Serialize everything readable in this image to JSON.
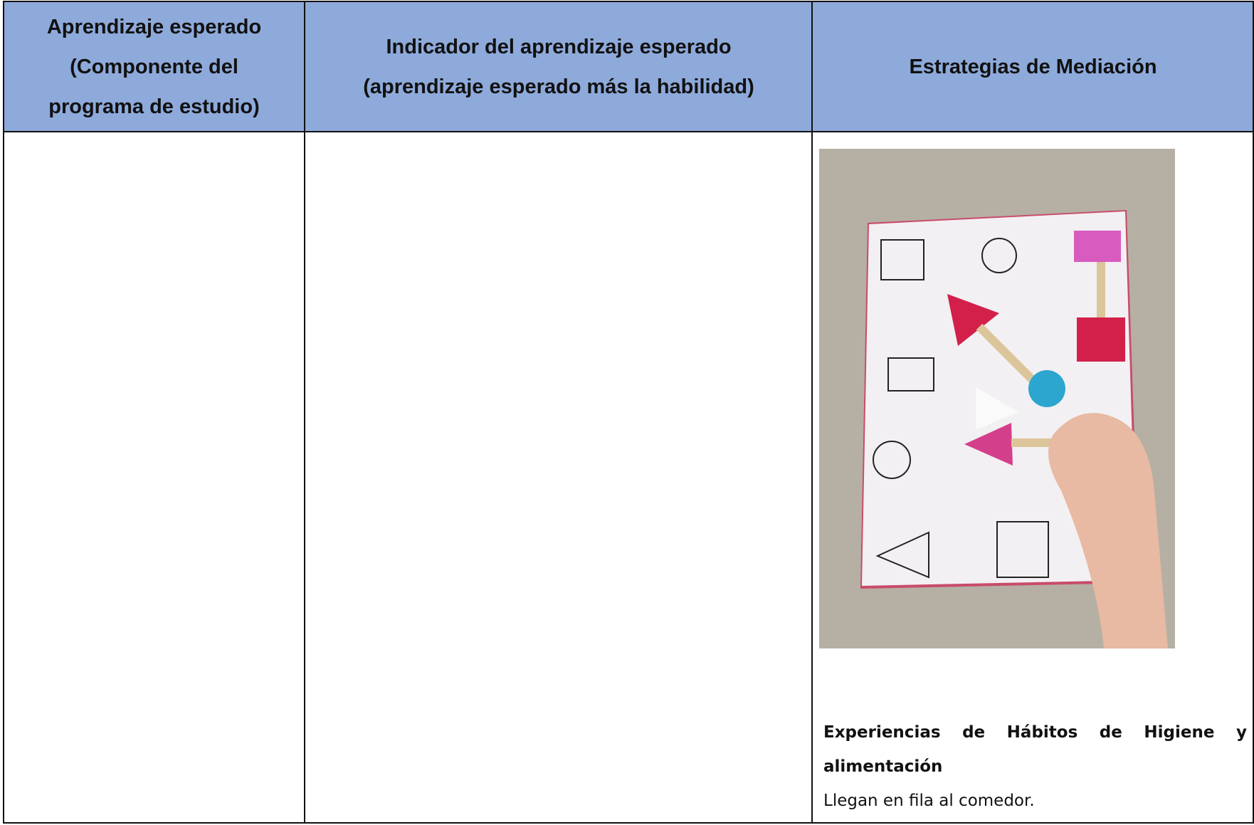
{
  "table": {
    "header": [
      {
        "lines": [
          "Aprendizaje esperado",
          "(Componente del",
          "programa de estudio)"
        ]
      },
      {
        "lines": [
          "Indicador del aprendizaje esperado",
          "(aprendizaje esperado más la habilidad)"
        ]
      },
      {
        "lines": [
          "Estrategias de Mediación"
        ]
      }
    ],
    "strategy": {
      "heading": "Experiencias de Hábitos de Higiene y alimentación",
      "text": "Llegan en fila al comedor."
    }
  }
}
